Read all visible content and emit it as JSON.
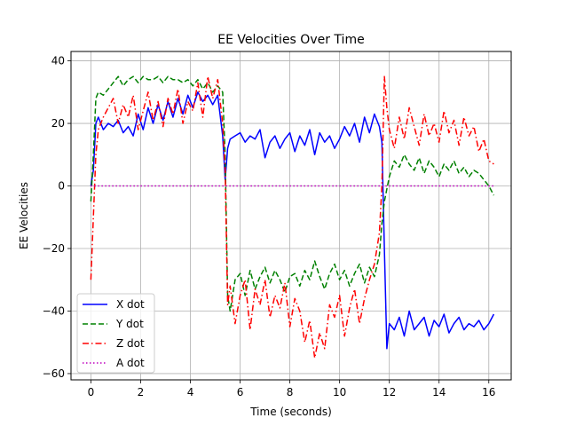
{
  "chart_data": {
    "type": "line",
    "title": "EE Velocities Over Time",
    "xlabel": "Time (seconds)",
    "ylabel": "EE Velocities",
    "xlim": [
      -0.8,
      16.9
    ],
    "ylim": [
      -62,
      43
    ],
    "xticks": [
      0,
      2,
      4,
      6,
      8,
      10,
      12,
      14,
      16
    ],
    "yticks": [
      -60,
      -40,
      -20,
      0,
      20,
      40
    ],
    "grid": true,
    "legend_position": "bottom-left",
    "series": [
      {
        "name": "X dot",
        "color": "#0000ff",
        "dash": "solid",
        "x": [
          0,
          0.1,
          0.2,
          0.3,
          0.5,
          0.7,
          0.9,
          1.1,
          1.3,
          1.5,
          1.7,
          1.9,
          2.1,
          2.3,
          2.5,
          2.7,
          2.9,
          3.1,
          3.3,
          3.5,
          3.7,
          3.9,
          4.1,
          4.3,
          4.5,
          4.7,
          4.9,
          5.1,
          5.3,
          5.4,
          5.5,
          5.6,
          5.8,
          6.0,
          6.2,
          6.4,
          6.6,
          6.8,
          7.0,
          7.2,
          7.4,
          7.6,
          7.8,
          8.0,
          8.2,
          8.4,
          8.6,
          8.8,
          9.0,
          9.2,
          9.4,
          9.6,
          9.8,
          10.0,
          10.2,
          10.4,
          10.6,
          10.8,
          11.0,
          11.2,
          11.4,
          11.6,
          11.7,
          11.8,
          11.9,
          12.0,
          12.2,
          12.4,
          12.6,
          12.8,
          13.0,
          13.2,
          13.4,
          13.6,
          13.8,
          14.0,
          14.2,
          14.4,
          14.6,
          14.8,
          15.0,
          15.2,
          15.4,
          15.6,
          15.8,
          16.0,
          16.2
        ],
        "values": [
          0,
          5,
          20,
          22,
          18,
          20,
          19,
          21,
          17,
          19,
          16,
          23,
          18,
          25,
          20,
          26,
          21,
          27,
          22,
          28,
          23,
          29,
          25,
          30,
          27,
          29,
          26,
          29,
          16,
          2,
          12,
          15,
          16,
          17,
          14,
          16,
          15,
          18,
          9,
          14,
          16,
          12,
          15,
          17,
          11,
          16,
          13,
          18,
          10,
          17,
          14,
          16,
          12,
          15,
          19,
          16,
          20,
          14,
          22,
          17,
          23,
          19,
          14,
          -20,
          -52,
          -44,
          -46,
          -42,
          -48,
          -40,
          -46,
          -44,
          -42,
          -48,
          -43,
          -45,
          -41,
          -47,
          -44,
          -42,
          -46,
          -44,
          -45,
          -43,
          -46,
          -44,
          -41
        ],
        "data_name": "series-x-dot"
      },
      {
        "name": "Y dot",
        "color": "#008000",
        "dash": "dashed",
        "x": [
          0,
          0.1,
          0.2,
          0.3,
          0.5,
          0.7,
          0.9,
          1.1,
          1.3,
          1.5,
          1.7,
          1.9,
          2.1,
          2.3,
          2.5,
          2.7,
          2.9,
          3.1,
          3.3,
          3.5,
          3.7,
          3.9,
          4.1,
          4.3,
          4.5,
          4.7,
          4.9,
          5.1,
          5.3,
          5.4,
          5.5,
          5.6,
          5.8,
          6.0,
          6.2,
          6.4,
          6.6,
          6.8,
          7.0,
          7.2,
          7.4,
          7.6,
          7.8,
          8.0,
          8.2,
          8.4,
          8.6,
          8.8,
          9.0,
          9.2,
          9.4,
          9.6,
          9.8,
          10.0,
          10.2,
          10.4,
          10.6,
          10.8,
          11.0,
          11.2,
          11.4,
          11.6,
          11.7,
          11.8,
          11.9,
          12.0,
          12.2,
          12.4,
          12.6,
          12.8,
          13.0,
          13.2,
          13.4,
          13.6,
          13.8,
          14.0,
          14.2,
          14.4,
          14.6,
          14.8,
          15.0,
          15.2,
          15.4,
          15.6,
          15.8,
          16.0,
          16.2
        ],
        "values": [
          -5,
          10,
          28,
          30,
          29,
          31,
          33,
          35,
          32,
          34,
          35,
          33,
          35,
          34,
          34,
          35,
          33,
          35,
          34,
          34,
          33,
          34,
          32,
          34,
          31,
          33,
          30,
          32,
          30,
          10,
          -35,
          -40,
          -30,
          -28,
          -35,
          -27,
          -33,
          -29,
          -26,
          -31,
          -27,
          -30,
          -34,
          -29,
          -28,
          -32,
          -27,
          -30,
          -24,
          -29,
          -33,
          -28,
          -25,
          -30,
          -27,
          -32,
          -28,
          -25,
          -31,
          -26,
          -29,
          -22,
          -12,
          -5,
          -1,
          3,
          8,
          6,
          10,
          7,
          5,
          9,
          4,
          8,
          6,
          3,
          7,
          5,
          8,
          4,
          6,
          3,
          5,
          4,
          2,
          0,
          -3
        ],
        "data_name": "series-y-dot"
      },
      {
        "name": "Z dot",
        "color": "#ff0000",
        "dash": "dashdot",
        "x": [
          0,
          0.1,
          0.2,
          0.3,
          0.5,
          0.7,
          0.9,
          1.1,
          1.3,
          1.5,
          1.7,
          1.9,
          2.1,
          2.3,
          2.5,
          2.7,
          2.9,
          3.1,
          3.3,
          3.5,
          3.7,
          3.9,
          4.1,
          4.3,
          4.5,
          4.7,
          4.9,
          5.1,
          5.3,
          5.4,
          5.5,
          5.6,
          5.8,
          6.0,
          6.2,
          6.4,
          6.6,
          6.8,
          7.0,
          7.2,
          7.4,
          7.6,
          7.8,
          8.0,
          8.2,
          8.4,
          8.6,
          8.8,
          9.0,
          9.2,
          9.4,
          9.6,
          9.8,
          10.0,
          10.2,
          10.4,
          10.6,
          10.8,
          11.0,
          11.2,
          11.4,
          11.6,
          11.7,
          11.8,
          11.9,
          12.0,
          12.2,
          12.4,
          12.6,
          12.8,
          13.0,
          13.2,
          13.4,
          13.6,
          13.8,
          14.0,
          14.2,
          14.4,
          14.6,
          14.8,
          15.0,
          15.2,
          15.4,
          15.6,
          15.8,
          16.0,
          16.2
        ],
        "values": [
          -30,
          -10,
          10,
          18,
          22,
          25,
          28,
          20,
          26,
          22,
          29,
          18,
          24,
          30,
          21,
          27,
          19,
          28,
          23,
          31,
          20,
          27,
          24,
          33,
          22,
          35,
          28,
          34,
          20,
          5,
          -38,
          -32,
          -44,
          -35,
          -30,
          -46,
          -33,
          -38,
          -30,
          -42,
          -35,
          -39,
          -31,
          -45,
          -36,
          -40,
          -50,
          -43,
          -55,
          -47,
          -52,
          -38,
          -42,
          -35,
          -48,
          -39,
          -33,
          -44,
          -36,
          -30,
          -25,
          -15,
          0,
          35,
          25,
          18,
          12,
          22,
          15,
          25,
          19,
          13,
          23,
          16,
          20,
          14,
          24,
          17,
          21,
          13,
          22,
          16,
          19,
          11,
          15,
          8,
          7
        ],
        "data_name": "series-z-dot"
      },
      {
        "name": "A dot",
        "color": "#bf00bf",
        "dash": "dotted",
        "x": [
          0,
          16.2
        ],
        "values": [
          0,
          0
        ],
        "data_name": "series-a-dot"
      }
    ]
  }
}
